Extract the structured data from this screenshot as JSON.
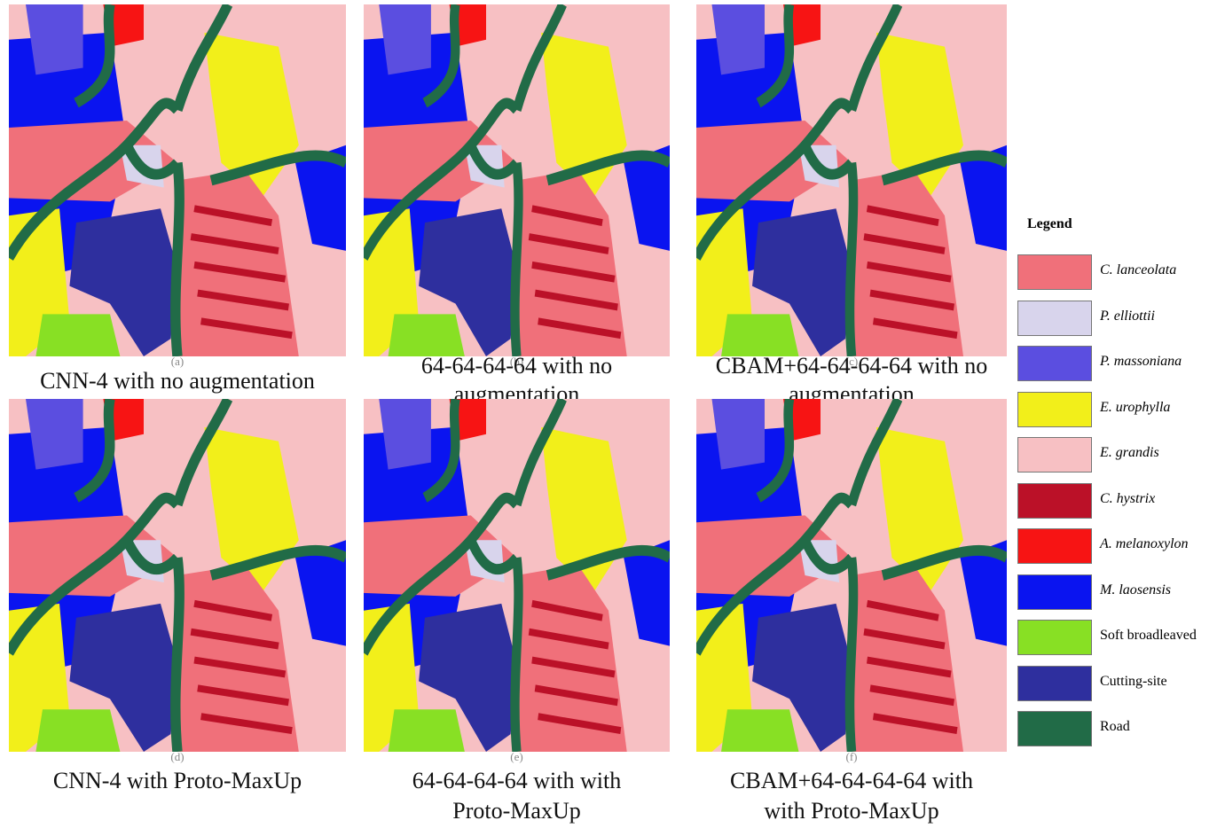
{
  "panels": [
    {
      "caption": [
        "CNN-4 with no augmentation"
      ],
      "sublabel": "(a)"
    },
    {
      "caption": [
        "64-64-64-64 with no",
        "augmentation"
      ],
      "sublabel": "(b)"
    },
    {
      "caption": [
        "CBAM+64-64-64-64 with no",
        "augmentation"
      ],
      "sublabel": "(c)"
    },
    {
      "caption": [
        "CNN-4 with Proto-MaxUp"
      ],
      "sublabel": "(d)"
    },
    {
      "caption": [
        "64-64-64-64 with with",
        "Proto-MaxUp"
      ],
      "sublabel": "(e)"
    },
    {
      "caption": [
        "CBAM+64-64-64-64 with",
        "with Proto-MaxUp"
      ],
      "sublabel": "(f)"
    }
  ],
  "legend": {
    "title": "Legend",
    "items": [
      {
        "label": "C. lanceolata",
        "color": "#f0707a"
      },
      {
        "label": "P. elliottii",
        "color": "#d8d4ec"
      },
      {
        "label": "P. massoniana",
        "color": "#5b4ee0"
      },
      {
        "label": "E. urophylla",
        "color": "#f2ef1a"
      },
      {
        "label": "E. grandis",
        "color": "#f7c0c3"
      },
      {
        "label": "C. hystrix",
        "color": "#bb1128"
      },
      {
        "label": "A. melanoxylon",
        "color": "#f71414"
      },
      {
        "label": "M. laosensis",
        "color": "#0a14f0"
      },
      {
        "label": "Soft broadleaved",
        "color": "#88e024"
      },
      {
        "label": "Cutting-site",
        "color": "#2e2f9e"
      },
      {
        "label": "Road",
        "color": "#216b47"
      }
    ]
  }
}
